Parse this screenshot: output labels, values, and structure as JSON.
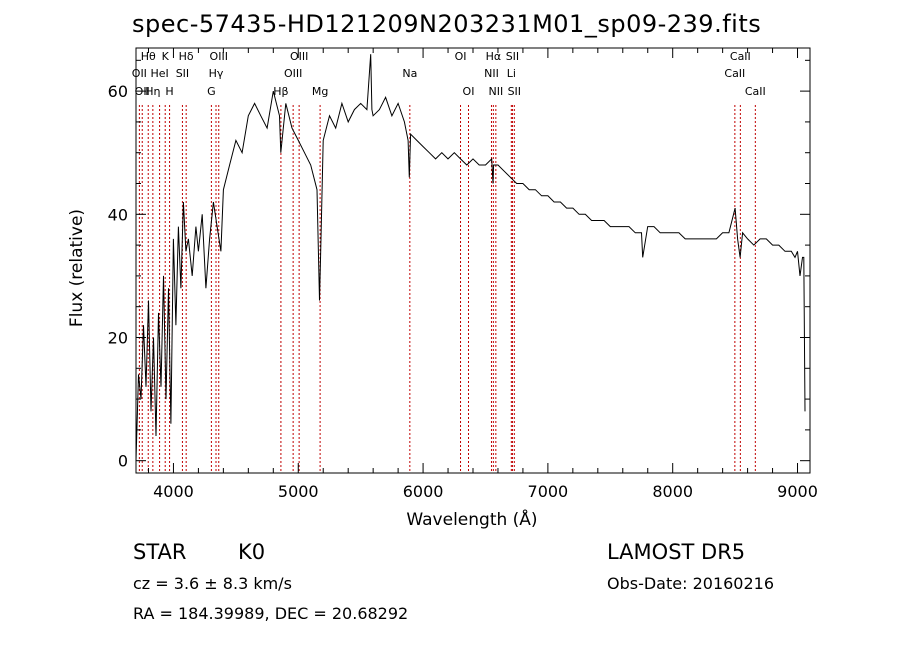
{
  "chart_data": {
    "type": "line",
    "title": "spec-57435-HD121209N203231M01_sp09-239.fits",
    "xlabel": "Wavelength (Å)",
    "ylabel": "Flux (relative)",
    "xlim": [
      3700,
      9100
    ],
    "ylim": [
      -2,
      67
    ],
    "xticks": [
      4000,
      5000,
      6000,
      7000,
      8000,
      9000
    ],
    "yticks": [
      0,
      20,
      40,
      60
    ],
    "grid": false,
    "series": [
      {
        "values_x": [
          3700,
          3720,
          3740,
          3760,
          3780,
          3800,
          3820,
          3840,
          3860,
          3880,
          3900,
          3920,
          3940,
          3960,
          3980,
          4000,
          4020,
          4040,
          4060,
          4080,
          4100,
          4120,
          4150,
          4180,
          4200,
          4230,
          4260,
          4290,
          4320,
          4350,
          4380,
          4400,
          4450,
          4500,
          4550,
          4600,
          4650,
          4700,
          4750,
          4800,
          4850,
          4860,
          4900,
          4950,
          5000,
          5050,
          5100,
          5150,
          5170,
          5180,
          5200,
          5250,
          5300,
          5350,
          5400,
          5450,
          5500,
          5550,
          5580,
          5590,
          5600,
          5650,
          5700,
          5750,
          5800,
          5850,
          5880,
          5890,
          5900,
          5950,
          6000,
          6050,
          6100,
          6150,
          6200,
          6250,
          6300,
          6350,
          6400,
          6450,
          6500,
          6550,
          6560,
          6565,
          6570,
          6600,
          6650,
          6700,
          6750,
          6800,
          6850,
          6900,
          6950,
          7000,
          7050,
          7100,
          7150,
          7200,
          7250,
          7300,
          7350,
          7400,
          7450,
          7500,
          7550,
          7600,
          7650,
          7700,
          7750,
          7760,
          7800,
          7850,
          7900,
          7950,
          8000,
          8050,
          8100,
          8150,
          8200,
          8250,
          8300,
          8350,
          8400,
          8450,
          8500,
          8520,
          8540,
          8560,
          8600,
          8650,
          8700,
          8750,
          8800,
          8850,
          8900,
          8950,
          8980,
          9000,
          9020,
          9040,
          9050,
          9060
        ],
        "values_y": [
          0,
          14,
          10,
          22,
          12,
          26,
          8,
          20,
          4,
          24,
          12,
          30,
          10,
          28,
          6,
          36,
          22,
          38,
          28,
          42,
          34,
          36,
          30,
          38,
          34,
          40,
          28,
          36,
          42,
          38,
          34,
          44,
          48,
          52,
          50,
          56,
          58,
          56,
          54,
          60,
          56,
          50,
          58,
          54,
          52,
          50,
          48,
          44,
          26,
          34,
          52,
          56,
          54,
          58,
          55,
          57,
          58,
          57,
          66,
          57,
          56,
          57,
          59,
          56,
          58,
          55,
          52,
          46,
          53,
          52,
          51,
          50,
          49,
          50,
          49,
          50,
          49,
          48,
          49,
          48,
          48,
          49,
          45,
          48,
          48,
          48,
          47,
          46,
          45,
          45,
          44,
          44,
          43,
          43,
          42,
          42,
          41,
          41,
          40,
          40,
          39,
          39,
          39,
          38,
          38,
          38,
          38,
          37,
          37,
          33,
          38,
          38,
          37,
          37,
          37,
          37,
          36,
          36,
          36,
          36,
          36,
          36,
          37,
          37,
          41,
          36,
          33,
          37,
          36,
          35,
          36,
          36,
          35,
          35,
          34,
          34,
          33,
          34,
          30,
          33,
          33,
          8
        ]
      }
    ],
    "lines": [
      {
        "x": 3727,
        "label": "OII",
        "row": 2
      },
      {
        "x": 3750,
        "label": "OII",
        "row": 3
      },
      {
        "x": 3798,
        "label": "Hθ",
        "row": 1
      },
      {
        "x": 3835,
        "label": "Hη",
        "row": 3
      },
      {
        "x": 3889,
        "label": "HeI",
        "row": 2
      },
      {
        "x": 3934,
        "label": "K",
        "row": 1
      },
      {
        "x": 3969,
        "label": "H",
        "row": 3
      },
      {
        "x": 4072,
        "label": "SII",
        "row": 2
      },
      {
        "x": 4102,
        "label": "Hδ",
        "row": 1
      },
      {
        "x": 4304,
        "label": "G",
        "row": 3
      },
      {
        "x": 4341,
        "label": "Hγ",
        "row": 2
      },
      {
        "x": 4363,
        "label": "OIII",
        "row": 1
      },
      {
        "x": 4861,
        "label": "Hβ",
        "row": 3
      },
      {
        "x": 4959,
        "label": "OIII",
        "row": 2
      },
      {
        "x": 5007,
        "label": "OIII",
        "row": 1
      },
      {
        "x": 5175,
        "label": "Mg",
        "row": 3
      },
      {
        "x": 5894,
        "label": "Na",
        "row": 2
      },
      {
        "x": 6300,
        "label": "OI",
        "row": 1
      },
      {
        "x": 6364,
        "label": "OI",
        "row": 3
      },
      {
        "x": 6548,
        "label": "NII",
        "row": 2
      },
      {
        "x": 6563,
        "label": "Hα",
        "row": 1
      },
      {
        "x": 6583,
        "label": "NII",
        "row": 3
      },
      {
        "x": 6707,
        "label": "Li",
        "row": 2
      },
      {
        "x": 6716,
        "label": "SII",
        "row": 1
      },
      {
        "x": 6731,
        "label": "SII",
        "row": 3
      },
      {
        "x": 8498,
        "label": "CaII",
        "row": 2
      },
      {
        "x": 8542,
        "label": "CaII",
        "row": 1
      },
      {
        "x": 8662,
        "label": "CaII",
        "row": 3
      }
    ]
  },
  "info": {
    "class_label": "STAR",
    "subclass": "K0",
    "survey": "LAMOST DR5",
    "cz_text": "cz = 3.6 ± 8.3 km/s",
    "obs_date": "Obs-Date: 20160216",
    "coords": "RA = 184.39989, DEC =  20.68292"
  },
  "colors": {
    "spectrum": "#000000",
    "lines": "#c00000",
    "axis": "#000000",
    "background": "#ffffff"
  }
}
